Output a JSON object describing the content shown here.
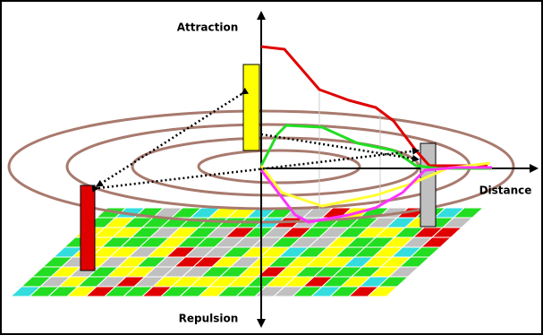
{
  "axes": {
    "attraction": "Attraction",
    "distance": "Distance",
    "repulsion": "Repulsion"
  }
}
